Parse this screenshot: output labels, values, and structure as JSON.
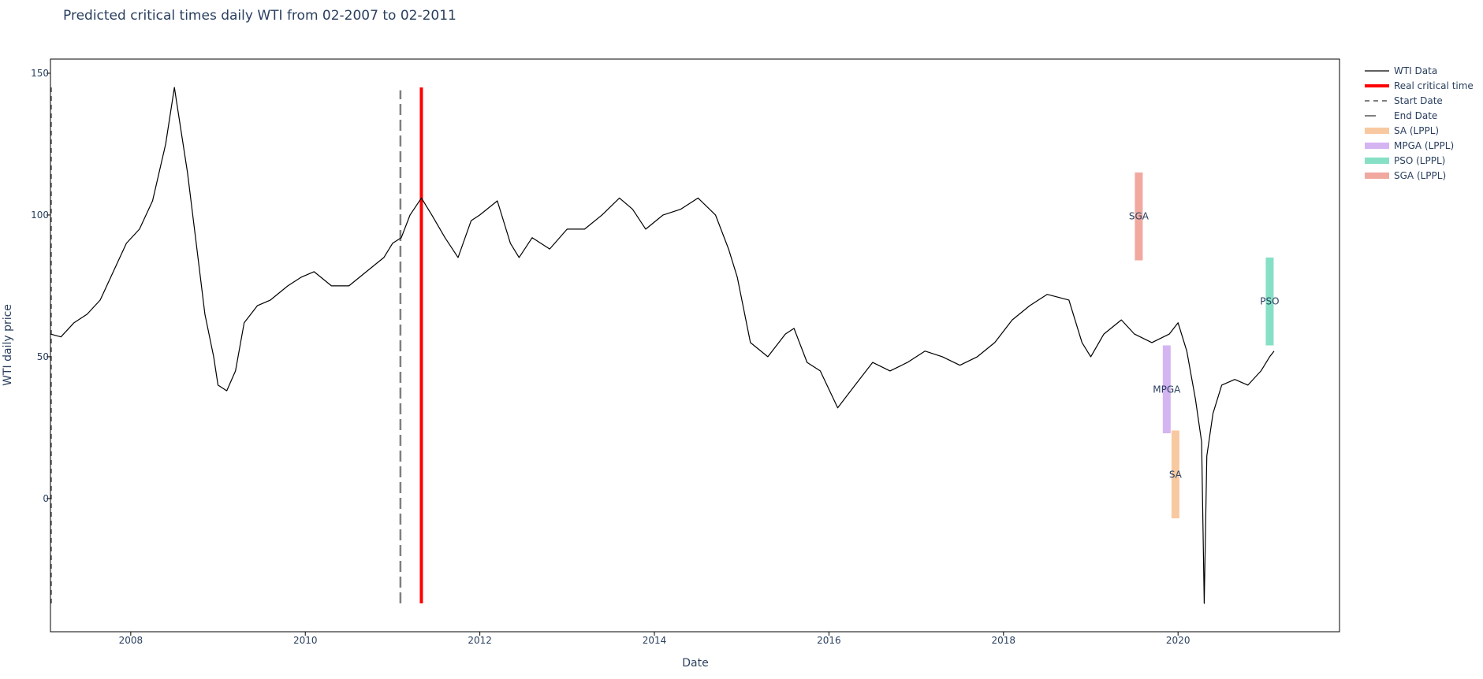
{
  "chart_data": {
    "type": "line",
    "title": "Predicted critical times daily WTI from 02-2007 to 02-2011",
    "xlabel": "Date",
    "ylabel": "WTI daily price",
    "xlim": [
      2007.08,
      2021.85
    ],
    "ylim": [
      -47,
      155
    ],
    "x_ticks": [
      2008,
      2010,
      2012,
      2014,
      2016,
      2018,
      2020
    ],
    "y_ticks": [
      0,
      50,
      100,
      150
    ],
    "grid": false,
    "legend_position": "top-right outside",
    "colors": {
      "wti": "#000000",
      "real": "#ff0000",
      "dates": "#808080",
      "sa": "#f8c9a0",
      "mpga": "#d5b4f2",
      "pso": "#86e0c6",
      "sga": "#f1a99f",
      "axis_text": "#2a3f5f"
    },
    "legend": [
      {
        "key": "wti",
        "label": "WTI Data",
        "style": "line"
      },
      {
        "key": "real",
        "label": "Real critical time",
        "style": "thick"
      },
      {
        "key": "start",
        "label": "Start Date",
        "style": "dash"
      },
      {
        "key": "end",
        "label": "End Date",
        "style": "longdash"
      },
      {
        "key": "sa",
        "label": "SA (LPPL)",
        "style": "band"
      },
      {
        "key": "mpga",
        "label": "MPGA (LPPL)",
        "style": "band"
      },
      {
        "key": "pso",
        "label": "PSO (LPPL)",
        "style": "band"
      },
      {
        "key": "sga",
        "label": "SGA (LPPL)",
        "style": "band"
      }
    ],
    "vertical_lines": [
      {
        "key": "start",
        "name": "Start Date",
        "x": 2007.09,
        "y0": -37,
        "y1": 145
      },
      {
        "key": "end",
        "name": "End Date",
        "x": 2011.09,
        "y0": -37,
        "y1": 144
      },
      {
        "key": "real",
        "name": "Real critical time",
        "x": 2011.33,
        "y0": -37,
        "y1": 145
      }
    ],
    "prediction_bands": [
      {
        "key": "sga",
        "label": "SGA",
        "x": 2019.55,
        "y0": 84,
        "y1": 115
      },
      {
        "key": "mpga",
        "label": "MPGA",
        "x": 2019.87,
        "y0": 23,
        "y1": 54
      },
      {
        "key": "sa",
        "label": "SA",
        "x": 2019.97,
        "y0": -7,
        "y1": 24
      },
      {
        "key": "pso",
        "label": "PSO",
        "x": 2021.05,
        "y0": 54,
        "y1": 85
      }
    ],
    "series": [
      {
        "name": "WTI Data",
        "x": [
          2007.08,
          2007.2,
          2007.35,
          2007.5,
          2007.65,
          2007.8,
          2007.95,
          2008.1,
          2008.25,
          2008.4,
          2008.5,
          2008.55,
          2008.65,
          2008.75,
          2008.85,
          2008.95,
          2009.0,
          2009.1,
          2009.2,
          2009.3,
          2009.45,
          2009.6,
          2009.8,
          2009.95,
          2010.1,
          2010.3,
          2010.5,
          2010.7,
          2010.9,
          2011.0,
          2011.1,
          2011.2,
          2011.33,
          2011.45,
          2011.6,
          2011.75,
          2011.9,
          2012.0,
          2012.2,
          2012.35,
          2012.45,
          2012.6,
          2012.8,
          2013.0,
          2013.2,
          2013.4,
          2013.6,
          2013.75,
          2013.9,
          2014.1,
          2014.3,
          2014.5,
          2014.7,
          2014.85,
          2014.95,
          2015.1,
          2015.3,
          2015.5,
          2015.6,
          2015.75,
          2015.9,
          2016.1,
          2016.3,
          2016.5,
          2016.7,
          2016.9,
          2017.1,
          2017.3,
          2017.5,
          2017.7,
          2017.9,
          2018.1,
          2018.3,
          2018.5,
          2018.75,
          2018.9,
          2019.0,
          2019.15,
          2019.35,
          2019.5,
          2019.7,
          2019.9,
          2020.0,
          2020.1,
          2020.2,
          2020.27,
          2020.3,
          2020.33,
          2020.4,
          2020.5,
          2020.65,
          2020.8,
          2020.95,
          2021.05,
          2021.1
        ],
        "y": [
          58,
          57,
          62,
          65,
          70,
          80,
          90,
          95,
          105,
          125,
          145,
          135,
          115,
          90,
          65,
          50,
          40,
          38,
          45,
          62,
          68,
          70,
          75,
          78,
          80,
          75,
          75,
          80,
          85,
          90,
          92,
          100,
          106,
          100,
          92,
          85,
          98,
          100,
          105,
          90,
          85,
          92,
          88,
          95,
          95,
          100,
          106,
          102,
          95,
          100,
          102,
          106,
          100,
          88,
          78,
          55,
          50,
          58,
          60,
          48,
          45,
          32,
          40,
          48,
          45,
          48,
          52,
          50,
          47,
          50,
          55,
          63,
          68,
          72,
          70,
          55,
          50,
          58,
          63,
          58,
          55,
          58,
          62,
          52,
          35,
          20,
          -37,
          15,
          30,
          40,
          42,
          40,
          45,
          50,
          52
        ]
      }
    ]
  }
}
